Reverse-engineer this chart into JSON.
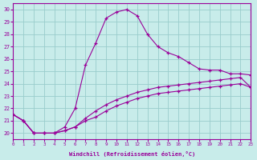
{
  "xlabel": "Windchill (Refroidissement éolien,°C)",
  "xlim": [
    0,
    23
  ],
  "ylim": [
    19.5,
    30.5
  ],
  "yticks": [
    20,
    21,
    22,
    23,
    24,
    25,
    26,
    27,
    28,
    29,
    30
  ],
  "xticks": [
    0,
    1,
    2,
    3,
    4,
    5,
    6,
    7,
    8,
    9,
    10,
    11,
    12,
    13,
    14,
    15,
    16,
    17,
    18,
    19,
    20,
    21,
    22,
    23
  ],
  "bg_color": "#c8ecea",
  "line_color": "#990099",
  "grid_color": "#99cccc",
  "series": {
    "temp": [
      21.5,
      21.0,
      20.0,
      20.0,
      20.0,
      20.5,
      22.0,
      25.5,
      27.3,
      29.3,
      29.8,
      30.0,
      29.5,
      28.0,
      27.0,
      26.5,
      26.2,
      25.7,
      25.2,
      25.1,
      25.1,
      24.8,
      24.8,
      24.7
    ],
    "temp2": [
      21.5,
      21.0,
      20.0,
      20.0,
      20.0,
      20.2,
      20.5,
      21.0,
      21.3,
      21.8,
      22.2,
      22.5,
      22.8,
      23.0,
      23.2,
      23.3,
      23.4,
      23.5,
      23.6,
      23.7,
      23.8,
      23.9,
      24.0,
      23.7
    ],
    "temp3": [
      21.5,
      21.0,
      20.0,
      20.0,
      20.0,
      20.2,
      20.5,
      21.2,
      21.8,
      22.3,
      22.7,
      23.0,
      23.3,
      23.5,
      23.7,
      23.8,
      23.9,
      24.0,
      24.1,
      24.2,
      24.3,
      24.4,
      24.5,
      23.7
    ]
  }
}
